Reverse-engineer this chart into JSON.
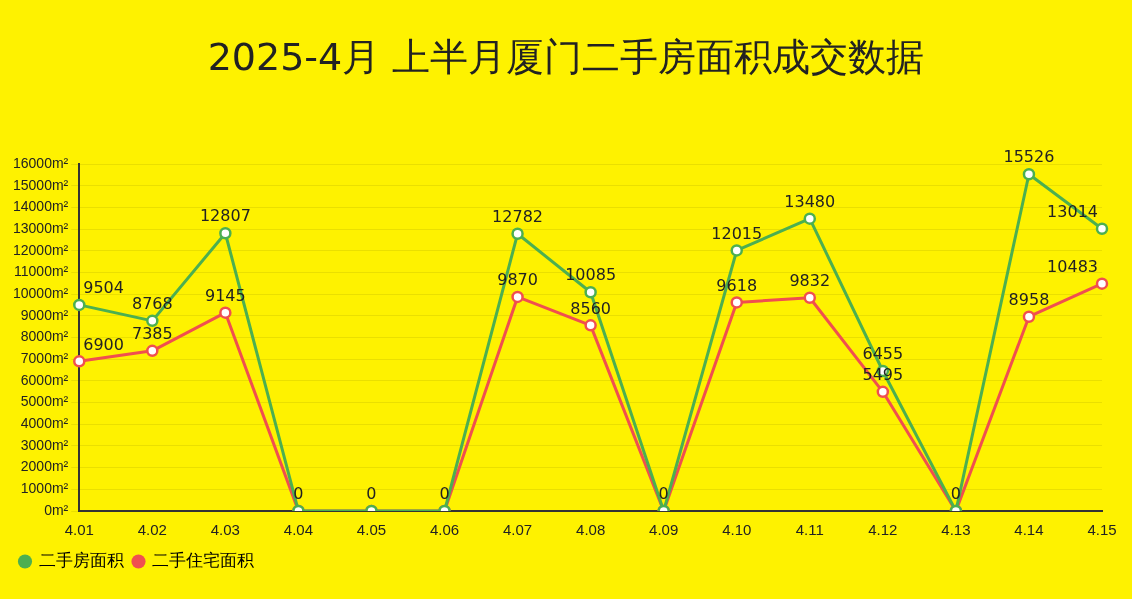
{
  "chart_data": {
    "type": "line",
    "title": "2025-4月 上半月厦门二手房面积成交数据",
    "categories": [
      "4.01",
      "4.02",
      "4.03",
      "4.04",
      "4.05",
      "4.06",
      "4.07",
      "4.08",
      "4.09",
      "4.10",
      "4.11",
      "4.12",
      "4.13",
      "4.14",
      "4.15"
    ],
    "series": [
      {
        "name": "二手房面积",
        "color": "#4caf50",
        "values": [
          9504,
          8768,
          12807,
          0,
          0,
          0,
          12782,
          10085,
          0,
          12015,
          13480,
          6455,
          0,
          15526,
          13014
        ],
        "value_labels": [
          "9504",
          "8768",
          "12807",
          "0",
          "0",
          "0",
          "12782",
          "10085",
          "0",
          "12015",
          "13480",
          "6455",
          "0",
          "15526",
          "13014"
        ]
      },
      {
        "name": "二手住宅面积",
        "color": "#f04f4f",
        "values": [
          6900,
          7385,
          9145,
          0,
          0,
          0,
          9870,
          8560,
          0,
          9618,
          9832,
          5495,
          0,
          8958,
          10483
        ],
        "value_labels": [
          "6900",
          "7385",
          "9145",
          null,
          null,
          null,
          "9870",
          "8560",
          null,
          "9618",
          "9832",
          "5495",
          null,
          "8958",
          "10483"
        ]
      }
    ],
    "ylim": [
      0,
      16000
    ],
    "yticks": [
      {
        "value": 0,
        "label": "0m²"
      },
      {
        "value": 1000,
        "label": "1000m²"
      },
      {
        "value": 2000,
        "label": "2000m²"
      },
      {
        "value": 3000,
        "label": "3000m²"
      },
      {
        "value": 4000,
        "label": "4000m²"
      },
      {
        "value": 5000,
        "label": "5000m²"
      },
      {
        "value": 6000,
        "label": "6000m²"
      },
      {
        "value": 7000,
        "label": "7000m²"
      },
      {
        "value": 8000,
        "label": "8000m²"
      },
      {
        "value": 9000,
        "label": "9000m²"
      },
      {
        "value": 10000,
        "label": "10000m²"
      },
      {
        "value": 11000,
        "label": "11000m²"
      },
      {
        "value": 12000,
        "label": "12000m²"
      },
      {
        "value": 13000,
        "label": "13000m²"
      },
      {
        "value": 14000,
        "label": "14000m²"
      },
      {
        "value": 15000,
        "label": "15000m²"
      },
      {
        "value": 16000,
        "label": "16000m²"
      }
    ],
    "grid": "y",
    "legend": "bottom left",
    "marker": "circle",
    "line_style": "solid"
  }
}
